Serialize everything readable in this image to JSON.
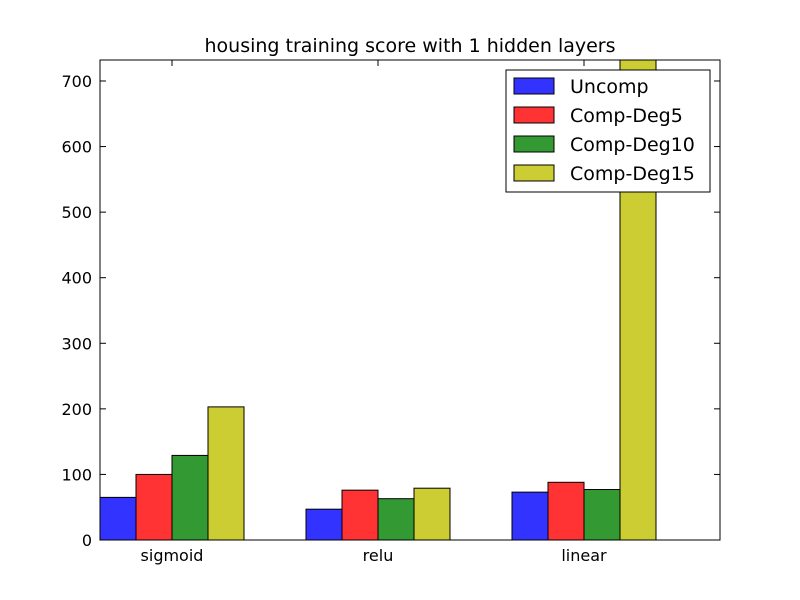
{
  "chart_data": {
    "type": "bar",
    "title": "housing training score with 1 hidden layers",
    "xlabel": "",
    "ylabel": "",
    "categories": [
      "sigmoid",
      "relu",
      "linear"
    ],
    "series": [
      {
        "name": "Uncomp",
        "color": "#3333ff",
        "values": [
          65,
          47,
          73
        ]
      },
      {
        "name": "Comp-Deg5",
        "color": "#ff3333",
        "values": [
          100,
          76,
          88
        ]
      },
      {
        "name": "Comp-Deg10",
        "color": "#339933",
        "values": [
          129,
          63,
          77
        ]
      },
      {
        "name": "Comp-Deg15",
        "color": "#cccc33",
        "values": [
          203,
          79,
          735
        ]
      }
    ],
    "ylim": [
      0,
      732
    ],
    "yticks": [
      0,
      100,
      200,
      300,
      400,
      500,
      600,
      700
    ],
    "legend_position": "top-right",
    "grid": false
  }
}
